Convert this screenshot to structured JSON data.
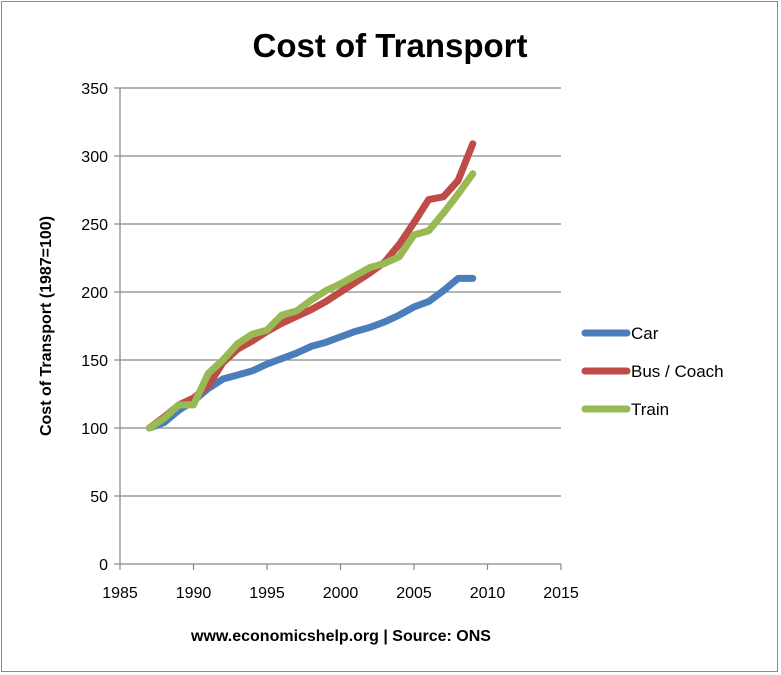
{
  "chart_data": {
    "type": "line",
    "title": "Cost of Transport",
    "xlabel": "www.economicshelp.org | Source: ONS",
    "ylabel": "Cost of Transport (1987=100)",
    "xlim": [
      1985,
      2015
    ],
    "ylim": [
      0,
      350
    ],
    "x_ticks": [
      "1985",
      "1990",
      "1995",
      "2000",
      "2005",
      "2010",
      "2015"
    ],
    "y_ticks": [
      "0",
      "50",
      "100",
      "150",
      "200",
      "250",
      "300",
      "350"
    ],
    "grid": "horizontal",
    "legend_position": "right",
    "x": [
      1987,
      1988,
      1989,
      1990,
      1991,
      1992,
      1993,
      1994,
      1995,
      1996,
      1997,
      1998,
      1999,
      2000,
      2001,
      2002,
      2003,
      2004,
      2005,
      2006,
      2007,
      2008,
      2009
    ],
    "series": [
      {
        "name": "Car",
        "color": "#4a7ebb",
        "values": [
          100,
          104,
          113,
          120,
          129,
          136,
          139,
          142,
          147,
          151,
          155,
          160,
          163,
          167,
          171,
          174,
          178,
          183,
          189,
          193,
          201,
          210,
          210
        ]
      },
      {
        "name": "Bus / Coach",
        "color": "#be4b48",
        "values": [
          100,
          108,
          117,
          122,
          131,
          148,
          158,
          164,
          171,
          177,
          182,
          187,
          193,
          200,
          207,
          214,
          222,
          235,
          251,
          268,
          270,
          282,
          309
        ]
      },
      {
        "name": "Train",
        "color": "#98b954",
        "values": [
          100,
          107,
          117,
          117,
          140,
          150,
          162,
          169,
          172,
          183,
          186,
          194,
          201,
          206,
          212,
          218,
          221,
          226,
          242,
          245,
          258,
          272,
          287
        ]
      }
    ]
  }
}
